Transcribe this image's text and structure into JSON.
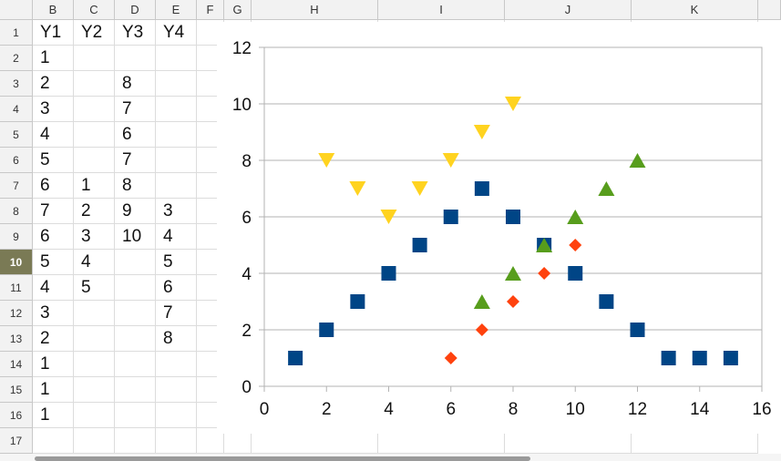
{
  "columns": [
    "B",
    "C",
    "D",
    "E",
    "F",
    "G",
    "H",
    "I",
    "J",
    "K"
  ],
  "rows": [
    "1",
    "2",
    "3",
    "4",
    "5",
    "6",
    "7",
    "8",
    "9",
    "10",
    "11",
    "12",
    "13",
    "14",
    "15",
    "16",
    "17"
  ],
  "active_row": "10",
  "grid": [
    [
      "Y1",
      "Y2",
      "Y3",
      "Y4"
    ],
    [
      "1",
      "",
      "",
      ""
    ],
    [
      "2",
      "",
      "8",
      ""
    ],
    [
      "3",
      "",
      "7",
      ""
    ],
    [
      "4",
      "",
      "6",
      ""
    ],
    [
      "5",
      "",
      "7",
      ""
    ],
    [
      "6",
      "1",
      "8",
      ""
    ],
    [
      "7",
      "2",
      "9",
      "3"
    ],
    [
      "6",
      "3",
      "10",
      "4"
    ],
    [
      "5",
      "4",
      "",
      "5"
    ],
    [
      "4",
      "5",
      "",
      "6"
    ],
    [
      "3",
      "",
      "",
      "7"
    ],
    [
      "2",
      "",
      "",
      "8"
    ],
    [
      "1",
      "",
      "",
      ""
    ],
    [
      "1",
      "",
      "",
      ""
    ],
    [
      "1",
      "",
      "",
      ""
    ],
    [
      "",
      "",
      "",
      ""
    ]
  ],
  "chart_data": {
    "type": "scatter",
    "xlim": [
      0,
      16
    ],
    "ylim": [
      0,
      12
    ],
    "x_ticks": [
      "0",
      "2",
      "4",
      "6",
      "8",
      "10",
      "12",
      "14",
      "16"
    ],
    "y_ticks": [
      "0",
      "2",
      "4",
      "6",
      "8",
      "10",
      "12"
    ],
    "grid": "horizontal",
    "legend": "none",
    "series": [
      {
        "marker": "square",
        "color": "#004586",
        "x": [
          1,
          2,
          3,
          4,
          5,
          6,
          7,
          8,
          9,
          10,
          11,
          12,
          13,
          14,
          15
        ],
        "y": [
          1,
          2,
          3,
          4,
          5,
          6,
          7,
          6,
          5,
          4,
          3,
          2,
          1,
          1,
          1
        ]
      },
      {
        "marker": "diamond",
        "color": "#ff420e",
        "x": [
          6,
          7,
          8,
          9,
          10
        ],
        "y": [
          1,
          2,
          3,
          4,
          5
        ]
      },
      {
        "marker": "triangle-down",
        "color": "#ffd320",
        "x": [
          2,
          3,
          4,
          5,
          6,
          7,
          8
        ],
        "y": [
          8,
          7,
          6,
          7,
          8,
          9,
          10
        ]
      },
      {
        "marker": "triangle-up",
        "color": "#579d1c",
        "x": [
          7,
          8,
          9,
          10,
          11,
          12
        ],
        "y": [
          3,
          4,
          5,
          6,
          7,
          8
        ]
      }
    ]
  }
}
